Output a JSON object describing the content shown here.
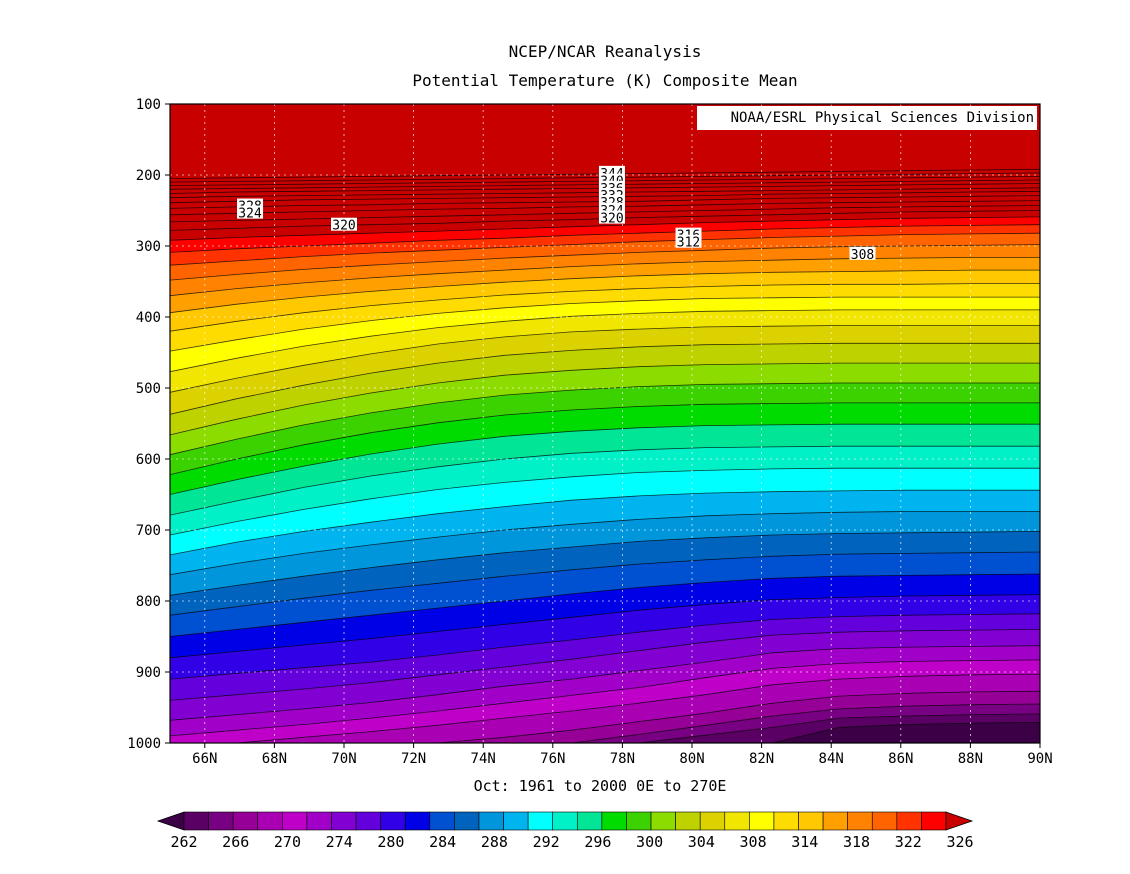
{
  "chart_data": {
    "type": "heatmap",
    "title": "NCEP/NCAR Reanalysis",
    "subtitle": "Potential Temperature (K) Composite Mean",
    "credit": "NOAA/ESRL Physical Sciences Division",
    "xlabel": "Oct: 1961 to 2000 0E to 270E",
    "ylabel": "",
    "x_axis": {
      "range": [
        65,
        90
      ],
      "ticks": [
        66,
        68,
        70,
        72,
        74,
        76,
        78,
        80,
        82,
        84,
        86,
        88,
        90
      ],
      "tick_labels": [
        "66N",
        "68N",
        "70N",
        "72N",
        "74N",
        "76N",
        "78N",
        "80N",
        "82N",
        "84N",
        "86N",
        "88N",
        "90N"
      ]
    },
    "y_axis": {
      "range": [
        100,
        1000
      ],
      "inverted": true,
      "ticks": [
        100,
        200,
        300,
        400,
        500,
        600,
        700,
        800,
        900,
        1000
      ],
      "tick_labels": [
        "100",
        "200",
        "300",
        "400",
        "500",
        "600",
        "700",
        "800",
        "900",
        "1000"
      ]
    },
    "grid": true,
    "colorbar": {
      "placement": "bottom",
      "levels": [
        262,
        264,
        266,
        268,
        270,
        272,
        274,
        276,
        278,
        280,
        282,
        284,
        286,
        288,
        290,
        292,
        294,
        296,
        298,
        300,
        302,
        304,
        306,
        308,
        310,
        312,
        314,
        316,
        318,
        320,
        322,
        324,
        326
      ],
      "tick_labels": [
        "262",
        "266",
        "270",
        "274",
        "280",
        "284",
        "288",
        "292",
        "296",
        "300",
        "304",
        "308",
        "314",
        "318",
        "322",
        "326"
      ],
      "colors": [
        "#3c0046",
        "#5a0064",
        "#780082",
        "#960096",
        "#aa00b4",
        "#be00c8",
        "#a000c8",
        "#8200d2",
        "#6400dc",
        "#3200e6",
        "#0000e6",
        "#0050d2",
        "#0064be",
        "#0096dc",
        "#00b4f0",
        "#00ffff",
        "#00f0c8",
        "#00e696",
        "#00dc00",
        "#3cd200",
        "#8cdc00",
        "#bed200",
        "#dcd200",
        "#f0e600",
        "#ffff00",
        "#ffdc00",
        "#ffc800",
        "#ffa000",
        "#ff8200",
        "#ff6400",
        "#ff3200",
        "#ff0000",
        "#c80000"
      ]
    },
    "contour_lines": [
      {
        "value": 262,
        "p": [
          1000,
          1000,
          1000,
          1000,
          1000,
          1000,
          1000,
          1000,
          1000,
          1000,
          978,
          974,
          972,
          971
        ]
      },
      {
        "value": 264,
        "p": [
          1000,
          1000,
          1000,
          1000,
          1000,
          1000,
          1000,
          1000,
          989,
          978,
          965,
          962,
          960,
          959
        ]
      },
      {
        "value": 266,
        "p": [
          1000,
          1000,
          1000,
          1000,
          1000,
          1000,
          1000,
          988,
          975,
          962,
          952,
          948,
          946,
          945
        ]
      },
      {
        "value": 268,
        "p": [
          1000,
          1000,
          1000,
          1000,
          1000,
          992,
          982,
          970,
          958,
          944,
          934,
          930,
          928,
          927
        ]
      },
      {
        "value": 270,
        "p": [
          1000,
          1000,
          992,
          984,
          975,
          965,
          955,
          944,
          932,
          918,
          910,
          906,
          904,
          903
        ]
      },
      {
        "value": 272,
        "p": [
          990,
          982,
          974,
          965,
          955,
          944,
          933,
          922,
          908,
          895,
          888,
          885,
          884,
          883
        ]
      },
      {
        "value": 274,
        "p": [
          968,
          960,
          952,
          943,
          932,
          920,
          910,
          898,
          886,
          873,
          867,
          865,
          864,
          863
        ]
      },
      {
        "value": 276,
        "p": [
          940,
          932,
          924,
          915,
          904,
          893,
          882,
          870,
          858,
          848,
          844,
          842,
          841,
          840
        ]
      },
      {
        "value": 278,
        "p": [
          910,
          902,
          894,
          886,
          876,
          865,
          855,
          844,
          834,
          826,
          822,
          820,
          819,
          818
        ]
      },
      {
        "value": 280,
        "p": [
          880,
          871,
          862,
          853,
          843,
          833,
          823,
          813,
          805,
          798,
          795,
          793,
          792,
          791
        ]
      },
      {
        "value": 282,
        "p": [
          850,
          840,
          830,
          820,
          810,
          800,
          790,
          781,
          774,
          768,
          765,
          764,
          763,
          762
        ]
      },
      {
        "value": 284,
        "p": [
          820,
          808,
          796,
          785,
          775,
          765,
          756,
          748,
          742,
          737,
          734,
          733,
          732,
          731
        ]
      },
      {
        "value": 286,
        "p": [
          792,
          778,
          765,
          753,
          742,
          732,
          724,
          716,
          711,
          707,
          705,
          704,
          703,
          702
        ]
      },
      {
        "value": 288,
        "p": [
          763,
          747,
          733,
          721,
          710,
          700,
          692,
          685,
          680,
          677,
          675,
          674,
          674,
          674
        ]
      },
      {
        "value": 290,
        "p": [
          735,
          717,
          702,
          689,
          677,
          667,
          658,
          652,
          648,
          646,
          645,
          644,
          644,
          644
        ]
      },
      {
        "value": 292,
        "p": [
          707,
          688,
          671,
          656,
          643,
          633,
          625,
          619,
          616,
          614,
          613,
          613,
          613,
          613
        ]
      },
      {
        "value": 294,
        "p": [
          679,
          659,
          640,
          624,
          611,
          600,
          592,
          587,
          584,
          583,
          582,
          582,
          582,
          582
        ]
      },
      {
        "value": 296,
        "p": [
          650,
          629,
          610,
          593,
          579,
          568,
          561,
          556,
          553,
          552,
          551,
          551,
          551,
          551
        ]
      },
      {
        "value": 298,
        "p": [
          622,
          600,
          580,
          563,
          549,
          538,
          531,
          526,
          523,
          522,
          521,
          521,
          521,
          521
        ]
      },
      {
        "value": 300,
        "p": [
          594,
          572,
          552,
          535,
          521,
          510,
          503,
          498,
          495,
          494,
          493,
          493,
          493,
          493
        ]
      },
      {
        "value": 302,
        "p": [
          566,
          544,
          524,
          507,
          493,
          482,
          475,
          470,
          467,
          466,
          465,
          465,
          465,
          465
        ]
      },
      {
        "value": 304,
        "p": [
          537,
          515,
          496,
          479,
          465,
          454,
          447,
          442,
          439,
          438,
          437,
          437,
          437,
          437
        ]
      },
      {
        "value": 306,
        "p": [
          506,
          486,
          468,
          452,
          438,
          428,
          421,
          417,
          414,
          413,
          412,
          412,
          412,
          412
        ]
      },
      {
        "value": 308,
        "p": [
          477,
          458,
          441,
          427,
          415,
          406,
          399,
          395,
          392,
          391,
          390,
          390,
          390,
          390
        ]
      },
      {
        "value": 310,
        "p": [
          448,
          432,
          417,
          405,
          395,
          387,
          381,
          377,
          374,
          373,
          372,
          372,
          372,
          372
        ]
      },
      {
        "value": 312,
        "p": [
          420,
          406,
          394,
          384,
          376,
          369,
          364,
          360,
          357,
          355,
          354,
          354,
          353,
          353
        ]
      },
      {
        "value": 314,
        "p": [
          394,
          382,
          372,
          364,
          357,
          351,
          346,
          342,
          339,
          337,
          336,
          335,
          334,
          334
        ]
      },
      {
        "value": 316,
        "p": [
          370,
          360,
          352,
          345,
          339,
          334,
          329,
          325,
          322,
          320,
          318,
          317,
          316,
          316
        ]
      },
      {
        "value": 318,
        "p": [
          348,
          340,
          333,
          327,
          322,
          317,
          313,
          309,
          306,
          303,
          301,
          300,
          299,
          298
        ]
      },
      {
        "value": 320,
        "p": [
          327,
          321,
          315,
          310,
          306,
          302,
          298,
          294,
          291,
          288,
          286,
          284,
          283,
          282
        ]
      },
      {
        "value": 322,
        "p": [
          309,
          304,
          300,
          296,
          292,
          289,
          285,
          282,
          279,
          276,
          274,
          272,
          271,
          270
        ]
      },
      {
        "value": 324,
        "p": [
          292,
          288,
          285,
          282,
          279,
          276,
          273,
          270,
          267,
          265,
          263,
          261,
          260,
          259
        ]
      },
      {
        "value": 326,
        "p": [
          278,
          275,
          272,
          270,
          268,
          265,
          263,
          260,
          258,
          256,
          254,
          252,
          251,
          250
        ]
      },
      {
        "value": 328,
        "p": [
          266,
          264,
          262,
          260,
          258,
          256,
          254,
          252,
          250,
          248,
          246,
          245,
          244,
          243
        ]
      },
      {
        "value": 330,
        "p": [
          256,
          254,
          252,
          250,
          248,
          247,
          245,
          244,
          242,
          240,
          239,
          238,
          237,
          236
        ]
      },
      {
        "value": 332,
        "p": [
          247,
          245,
          243,
          242,
          240,
          239,
          238,
          237,
          235,
          233,
          232,
          231,
          230,
          229
        ]
      },
      {
        "value": 334,
        "p": [
          239,
          237,
          235,
          234,
          233,
          232,
          231,
          230,
          229,
          227,
          226,
          225,
          224,
          223
        ]
      },
      {
        "value": 336,
        "p": [
          232,
          230,
          229,
          228,
          227,
          226,
          225,
          224,
          223,
          222,
          221,
          220,
          219,
          218
        ]
      },
      {
        "value": 338,
        "p": [
          226,
          224,
          223,
          222,
          221,
          220,
          219,
          218,
          217,
          216,
          215,
          214,
          213,
          212
        ]
      },
      {
        "value": 340,
        "p": [
          220,
          219,
          218,
          217,
          216,
          215,
          214,
          213,
          212,
          211,
          210,
          209,
          208,
          207
        ]
      },
      {
        "value": 342,
        "p": [
          215,
          214,
          213,
          212,
          211,
          210,
          209,
          208,
          207,
          206,
          205,
          204,
          203,
          202
        ]
      },
      {
        "value": 344,
        "p": [
          210,
          209,
          208,
          207,
          206,
          205,
          204,
          203,
          202,
          201,
          200,
          199,
          198,
          197
        ]
      },
      {
        "value": 346,
        "p": [
          205,
          204,
          203,
          202,
          201,
          200,
          199,
          198,
          197,
          196,
          195,
          194,
          193,
          192
        ]
      }
    ],
    "contour_labels": [
      {
        "text": "344",
        "lat": 77.7,
        "p": 197
      },
      {
        "text": "340",
        "lat": 77.7,
        "p": 208
      },
      {
        "text": "336",
        "lat": 77.7,
        "p": 218
      },
      {
        "text": "332",
        "lat": 77.7,
        "p": 228
      },
      {
        "text": "328",
        "lat": 77.7,
        "p": 238
      },
      {
        "text": "324",
        "lat": 77.7,
        "p": 249
      },
      {
        "text": "320",
        "lat": 77.7,
        "p": 260
      },
      {
        "text": "328",
        "lat": 67.3,
        "p": 243
      },
      {
        "text": "324",
        "lat": 67.3,
        "p": 253
      },
      {
        "text": "320",
        "lat": 70.0,
        "p": 270
      },
      {
        "text": "316",
        "lat": 79.9,
        "p": 284
      },
      {
        "text": "312",
        "lat": 79.9,
        "p": 294
      },
      {
        "text": "308",
        "lat": 84.9,
        "p": 311
      }
    ]
  }
}
